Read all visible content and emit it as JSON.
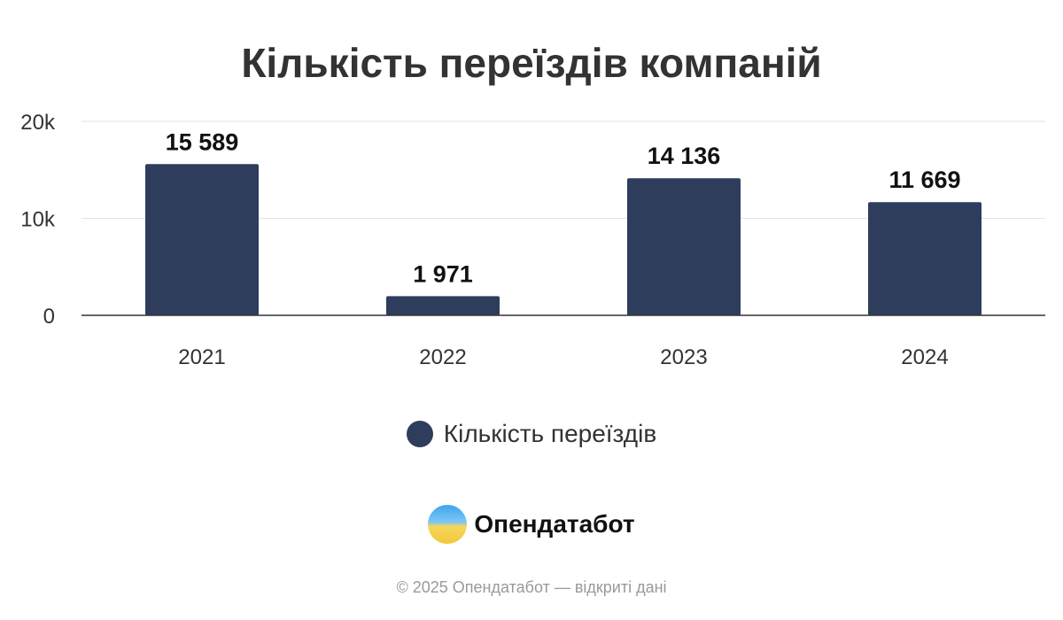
{
  "chart_data": {
    "type": "bar",
    "title": "Кількість переїздів компаній",
    "categories": [
      "2021",
      "2022",
      "2023",
      "2024"
    ],
    "series": [
      {
        "name": "Кількість переїздів",
        "values": [
          15589,
          1971,
          14136,
          11669
        ],
        "labels": [
          "15 589",
          "1 971",
          "14 136",
          "11 669"
        ]
      }
    ],
    "ylim": [
      0,
      20000
    ],
    "yticks": [
      {
        "value": 0,
        "label": "0"
      },
      {
        "value": 10000,
        "label": "10k"
      },
      {
        "value": 20000,
        "label": "20k"
      }
    ],
    "grid": true,
    "legend": "bottom",
    "color": "#2e3d5c"
  },
  "branding": {
    "logo_text": "Опендатабот",
    "footer": "© 2025 Опендатабот — відкриті дані"
  }
}
